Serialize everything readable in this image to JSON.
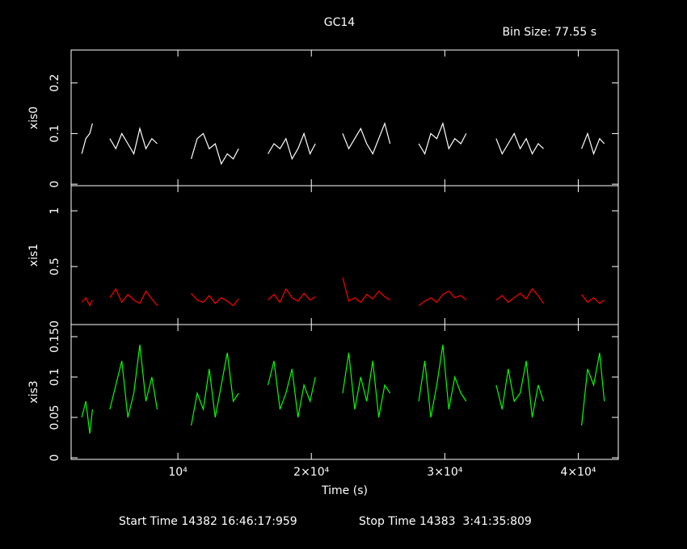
{
  "title": "GC14",
  "subtitle": "Bin Size: 77.55 s",
  "start_time": "Start Time 14382 16:46:17:959",
  "stop_time": "Stop Time 14383  3:41:35:809",
  "chart_data": [
    {
      "type": "line",
      "ylabel": "xis0",
      "color": "#ffffff",
      "xlim": [
        2000,
        43000
      ],
      "ylim": [
        -0.003,
        0.265
      ],
      "yticks": [
        0,
        0.1,
        0.2
      ],
      "x": [
        2800,
        3100,
        3400,
        3600,
        4200,
        4900,
        5350,
        5800,
        6250,
        6700,
        7150,
        7600,
        8050,
        8450,
        9700,
        11000,
        11450,
        11900,
        12350,
        12800,
        13250,
        13700,
        14150,
        14550,
        15600,
        16750,
        17200,
        17650,
        18100,
        18550,
        19000,
        19450,
        19900,
        20300,
        21300,
        22350,
        22800,
        23250,
        23700,
        24150,
        24600,
        25050,
        25500,
        25900,
        27000,
        28050,
        28500,
        28950,
        29400,
        29850,
        30300,
        30750,
        31200,
        31600,
        32700,
        33850,
        34300,
        34750,
        35200,
        35650,
        36100,
        36550,
        37000,
        37400,
        38800,
        40250,
        40700,
        41150,
        41600,
        41950
      ],
      "values": [
        0.06,
        0.09,
        0.1,
        0.12,
        null,
        0.09,
        0.07,
        0.1,
        0.08,
        0.06,
        0.11,
        0.07,
        0.09,
        0.08,
        null,
        0.05,
        0.09,
        0.1,
        0.07,
        0.08,
        0.04,
        0.06,
        0.05,
        0.07,
        null,
        0.06,
        0.08,
        0.07,
        0.09,
        0.05,
        0.07,
        0.1,
        0.06,
        0.08,
        null,
        0.1,
        0.07,
        0.09,
        0.11,
        0.08,
        0.06,
        0.09,
        0.12,
        0.08,
        null,
        0.08,
        0.06,
        0.1,
        0.09,
        0.12,
        0.07,
        0.09,
        0.08,
        0.1,
        null,
        0.09,
        0.06,
        0.08,
        0.1,
        0.07,
        0.09,
        0.06,
        0.08,
        0.07,
        null,
        0.07,
        0.1,
        0.06,
        0.09,
        0.08
      ]
    },
    {
      "type": "line",
      "ylabel": "xis1",
      "color": "#ff0000",
      "xlim": [
        2000,
        43000
      ],
      "ylim": [
        -0.02,
        1.225
      ],
      "yticks": [
        0.5,
        1
      ],
      "x": [
        2800,
        3100,
        3400,
        3600,
        4200,
        4900,
        5350,
        5800,
        6250,
        6700,
        7150,
        7600,
        8050,
        8450,
        9700,
        11000,
        11450,
        11900,
        12350,
        12800,
        13250,
        13700,
        14150,
        14550,
        15600,
        16750,
        17200,
        17650,
        18100,
        18550,
        19000,
        19450,
        19900,
        20300,
        21300,
        22350,
        22800,
        23250,
        23700,
        24150,
        24600,
        25050,
        25500,
        25900,
        27000,
        28050,
        28500,
        28950,
        29400,
        29850,
        30300,
        30750,
        31200,
        31600,
        32700,
        33850,
        34300,
        34750,
        35200,
        35650,
        36100,
        36550,
        37000,
        37400,
        38800,
        40250,
        40700,
        41150,
        41600,
        41950
      ],
      "values": [
        0.18,
        0.22,
        0.15,
        0.2,
        null,
        0.22,
        0.3,
        0.18,
        0.25,
        0.2,
        0.17,
        0.28,
        0.21,
        0.15,
        null,
        0.26,
        0.2,
        0.18,
        0.24,
        0.17,
        0.22,
        0.19,
        0.15,
        0.21,
        null,
        0.2,
        0.25,
        0.18,
        0.3,
        0.22,
        0.19,
        0.26,
        0.2,
        0.23,
        null,
        0.4,
        0.19,
        0.22,
        0.18,
        0.25,
        0.21,
        0.28,
        0.23,
        0.2,
        null,
        0.15,
        0.19,
        0.22,
        0.18,
        0.25,
        0.28,
        0.22,
        0.24,
        0.2,
        null,
        0.2,
        0.24,
        0.18,
        0.22,
        0.26,
        0.21,
        0.3,
        0.24,
        0.17,
        null,
        0.25,
        0.18,
        0.22,
        0.17,
        0.2
      ]
    },
    {
      "type": "line",
      "ylabel": "xis3",
      "color": "#00ff00",
      "xlabel": "Time (s)",
      "xlim": [
        2000,
        43000
      ],
      "ylim": [
        -0.002,
        0.165
      ],
      "yticks": [
        0,
        0.05,
        0.1,
        {
          "value": 0.15,
          "label": "0.150"
        }
      ],
      "xticks": [
        {
          "value": 10000,
          "label": "10⁴"
        },
        {
          "value": 20000,
          "label": "2×10⁴"
        },
        {
          "value": 30000,
          "label": "3×10⁴"
        },
        {
          "value": 40000,
          "label": "4×10⁴"
        }
      ],
      "x": [
        2800,
        3100,
        3400,
        3600,
        4200,
        4900,
        5350,
        5800,
        6250,
        6700,
        7150,
        7600,
        8050,
        8450,
        9700,
        11000,
        11450,
        11900,
        12350,
        12800,
        13250,
        13700,
        14150,
        14550,
        15600,
        16750,
        17200,
        17650,
        18100,
        18550,
        19000,
        19450,
        19900,
        20300,
        21300,
        22350,
        22800,
        23250,
        23700,
        24150,
        24600,
        25050,
        25500,
        25900,
        27000,
        28050,
        28500,
        28950,
        29400,
        29850,
        30300,
        30750,
        31200,
        31600,
        32700,
        33850,
        34300,
        34750,
        35200,
        35650,
        36100,
        36550,
        37000,
        37400,
        38800,
        40250,
        40700,
        41150,
        41600,
        41950
      ],
      "values": [
        0.05,
        0.07,
        0.03,
        0.06,
        null,
        0.06,
        0.09,
        0.12,
        0.05,
        0.08,
        0.14,
        0.07,
        0.1,
        0.06,
        null,
        0.04,
        0.08,
        0.06,
        0.11,
        0.05,
        0.09,
        0.13,
        0.07,
        0.08,
        null,
        0.09,
        0.12,
        0.06,
        0.08,
        0.11,
        0.05,
        0.09,
        0.07,
        0.1,
        null,
        0.08,
        0.13,
        0.06,
        0.1,
        0.07,
        0.12,
        0.05,
        0.09,
        0.08,
        null,
        0.07,
        0.12,
        0.05,
        0.09,
        0.14,
        0.06,
        0.1,
        0.08,
        0.07,
        null,
        0.09,
        0.06,
        0.11,
        0.07,
        0.08,
        0.12,
        0.05,
        0.09,
        0.07,
        null,
        0.04,
        0.11,
        0.09,
        0.13,
        0.07
      ]
    }
  ]
}
